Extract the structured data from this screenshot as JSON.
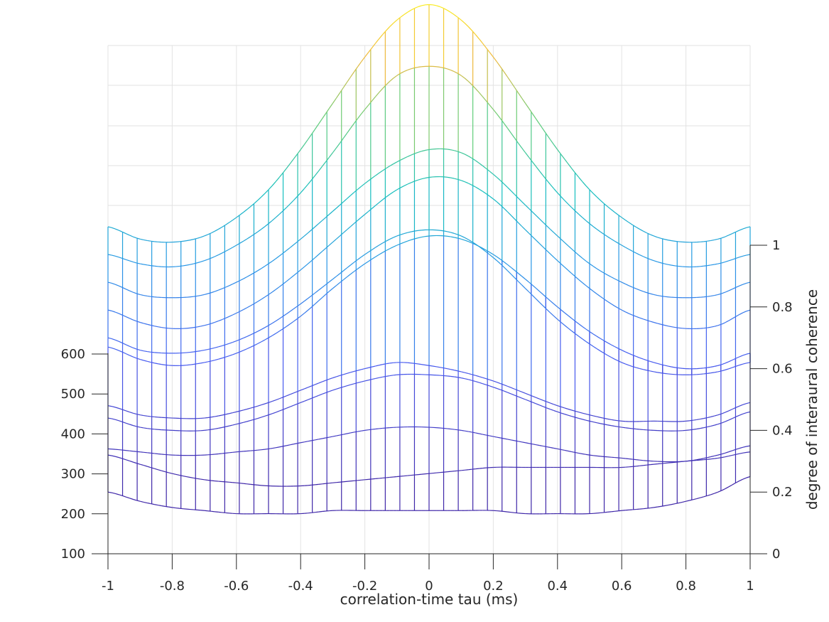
{
  "chart_data": {
    "type": "mesh3d",
    "title": "",
    "xlabel": "correlation-time tau (ms)",
    "ylabel_left": "",
    "zlabel": "degree of interaural coherence",
    "xlim": [
      -1,
      1
    ],
    "zlim": [
      0,
      1
    ],
    "left_axis_ticks": [
      "100",
      "200",
      "300",
      "400",
      "500",
      "600"
    ],
    "x_ticks": [
      "-1",
      "-0.8",
      "-0.6",
      "-0.4",
      "-0.2",
      "0",
      "0.2",
      "0.4",
      "0.6",
      "0.8",
      "1"
    ],
    "z_ticks": [
      "0",
      "0.2",
      "0.4",
      "0.6",
      "0.8",
      "1"
    ],
    "grid": true,
    "colormap": "parula",
    "mesh_columns": 45,
    "x_samples": [
      -1,
      -0.9,
      -0.8,
      -0.7,
      -0.6,
      -0.5,
      -0.4,
      -0.3,
      -0.2,
      -0.1,
      0,
      0.1,
      0.2,
      0.3,
      0.4,
      0.5,
      0.6,
      0.7,
      0.8,
      0.9,
      1
    ],
    "series": [
      {
        "name": "row-1",
        "values": [
          1.06,
          1.02,
          1.01,
          1.03,
          1.09,
          1.18,
          1.31,
          1.46,
          1.61,
          1.73,
          1.78,
          1.73,
          1.61,
          1.46,
          1.31,
          1.18,
          1.09,
          1.03,
          1.01,
          1.02,
          1.06
        ]
      },
      {
        "name": "row-2",
        "values": [
          0.97,
          0.94,
          0.93,
          0.95,
          1.0,
          1.07,
          1.17,
          1.3,
          1.44,
          1.55,
          1.58,
          1.55,
          1.44,
          1.3,
          1.17,
          1.07,
          1.0,
          0.95,
          0.93,
          0.94,
          0.97
        ]
      },
      {
        "name": "row-3",
        "values": [
          0.88,
          0.84,
          0.83,
          0.84,
          0.88,
          0.94,
          1.02,
          1.11,
          1.2,
          1.27,
          1.31,
          1.3,
          1.23,
          1.13,
          1.03,
          0.94,
          0.88,
          0.84,
          0.83,
          0.84,
          0.88
        ]
      },
      {
        "name": "row-4",
        "values": [
          0.79,
          0.75,
          0.73,
          0.74,
          0.78,
          0.84,
          0.92,
          1.01,
          1.1,
          1.18,
          1.22,
          1.21,
          1.15,
          1.05,
          0.95,
          0.86,
          0.79,
          0.75,
          0.73,
          0.74,
          0.79
        ]
      },
      {
        "name": "row-5",
        "values": [
          0.7,
          0.66,
          0.65,
          0.66,
          0.69,
          0.74,
          0.81,
          0.89,
          0.97,
          1.03,
          1.05,
          1.03,
          0.96,
          0.86,
          0.76,
          0.68,
          0.62,
          0.59,
          0.58,
          0.59,
          0.62
        ]
      },
      {
        "name": "row-6",
        "values": [
          0.67,
          0.63,
          0.61,
          0.62,
          0.65,
          0.7,
          0.77,
          0.86,
          0.94,
          1.0,
          1.03,
          1.02,
          0.97,
          0.89,
          0.8,
          0.72,
          0.66,
          0.62,
          0.6,
          0.61,
          0.65
        ]
      },
      {
        "name": "row-7",
        "values": [
          0.48,
          0.45,
          0.44,
          0.44,
          0.46,
          0.49,
          0.53,
          0.57,
          0.6,
          0.62,
          0.61,
          0.59,
          0.56,
          0.52,
          0.48,
          0.45,
          0.43,
          0.43,
          0.43,
          0.45,
          0.49
        ]
      },
      {
        "name": "row-8",
        "values": [
          0.44,
          0.41,
          0.4,
          0.4,
          0.42,
          0.45,
          0.49,
          0.53,
          0.56,
          0.58,
          0.58,
          0.57,
          0.54,
          0.5,
          0.46,
          0.43,
          0.41,
          0.4,
          0.4,
          0.42,
          0.46
        ]
      },
      {
        "name": "row-9",
        "values": [
          0.34,
          0.33,
          0.32,
          0.32,
          0.33,
          0.34,
          0.36,
          0.38,
          0.4,
          0.41,
          0.41,
          0.4,
          0.38,
          0.36,
          0.34,
          0.32,
          0.31,
          0.3,
          0.3,
          0.32,
          0.35
        ]
      },
      {
        "name": "row-10",
        "values": [
          0.32,
          0.29,
          0.26,
          0.24,
          0.23,
          0.22,
          0.22,
          0.23,
          0.24,
          0.25,
          0.26,
          0.27,
          0.28,
          0.28,
          0.28,
          0.28,
          0.28,
          0.29,
          0.3,
          0.31,
          0.33
        ]
      },
      {
        "name": "row-11",
        "values": [
          0.2,
          0.17,
          0.15,
          0.14,
          0.13,
          0.13,
          0.13,
          0.14,
          0.14,
          0.14,
          0.14,
          0.14,
          0.14,
          0.13,
          0.13,
          0.13,
          0.14,
          0.15,
          0.17,
          0.2,
          0.25
        ]
      }
    ]
  },
  "axes": {
    "xlabel": "correlation-time tau (ms)",
    "zlabel": "degree of interaural coherence"
  }
}
